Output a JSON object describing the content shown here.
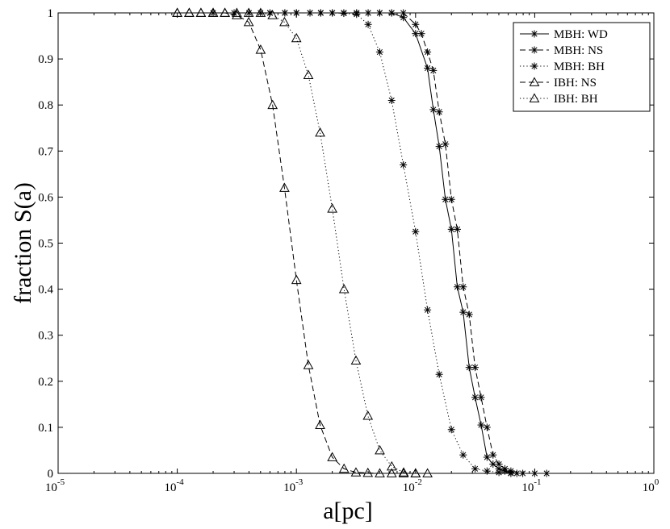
{
  "chart_data": {
    "type": "line",
    "xlabel": "a[pc]",
    "ylabel": "fraction S(a)",
    "xscale": "log",
    "xlim": [
      1e-05,
      1
    ],
    "ylim": [
      0,
      1
    ],
    "xticks": [
      {
        "value": 1e-05,
        "base": "10",
        "exp": "-5"
      },
      {
        "value": 0.0001,
        "base": "10",
        "exp": "-4"
      },
      {
        "value": 0.001,
        "base": "10",
        "exp": "-3"
      },
      {
        "value": 0.01,
        "base": "10",
        "exp": "-2"
      },
      {
        "value": 0.1,
        "base": "10",
        "exp": "-1"
      },
      {
        "value": 1,
        "base": "10",
        "exp": "0"
      }
    ],
    "yticks": [
      "0",
      "0.1",
      "0.2",
      "0.3",
      "0.4",
      "0.5",
      "0.6",
      "0.7",
      "0.8",
      "0.9",
      "1"
    ],
    "grid": false,
    "legend_position": "top-right",
    "series": [
      {
        "name": "MBH: WD",
        "line_style": "solid",
        "marker": "asterisk",
        "x": [
          0.0006,
          0.0008,
          0.001,
          0.0013,
          0.0016,
          0.002,
          0.0025,
          0.0032,
          0.004,
          0.005,
          0.0063,
          0.0079,
          0.01,
          0.0126,
          0.0141,
          0.0158,
          0.0178,
          0.02,
          0.0224,
          0.0251,
          0.0282,
          0.0316,
          0.0355,
          0.0398,
          0.0447,
          0.0501,
          0.0562,
          0.0631
        ],
        "y": [
          1,
          1,
          1,
          1,
          1,
          1,
          1,
          1,
          1,
          1,
          1,
          0.99,
          0.955,
          0.88,
          0.79,
          0.71,
          0.595,
          0.53,
          0.405,
          0.35,
          0.23,
          0.165,
          0.105,
          0.035,
          0.02,
          0.01,
          0.005,
          0
        ]
      },
      {
        "name": "MBH: NS",
        "line_style": "dashed",
        "marker": "asterisk",
        "x": [
          0.0006,
          0.0008,
          0.001,
          0.0013,
          0.0016,
          0.002,
          0.0025,
          0.0032,
          0.004,
          0.005,
          0.0063,
          0.0079,
          0.01,
          0.0112,
          0.0126,
          0.0141,
          0.0158,
          0.0178,
          0.02,
          0.0224,
          0.0251,
          0.0282,
          0.0316,
          0.0355,
          0.0398,
          0.0447,
          0.0501,
          0.0562,
          0.0631,
          0.0708
        ],
        "y": [
          1,
          1,
          1,
          1,
          1,
          1,
          1,
          1,
          1,
          1,
          1,
          1,
          0.975,
          0.955,
          0.915,
          0.875,
          0.785,
          0.715,
          0.595,
          0.53,
          0.405,
          0.345,
          0.23,
          0.165,
          0.1,
          0.04,
          0.02,
          0.01,
          0.005,
          0
        ]
      },
      {
        "name": "MBH: BH",
        "line_style": "dotted",
        "marker": "asterisk",
        "x": [
          0.0002,
          0.0003,
          0.0004,
          0.0005,
          0.0006,
          0.0008,
          0.001,
          0.0013,
          0.0016,
          0.002,
          0.0025,
          0.0032,
          0.004,
          0.005,
          0.0063,
          0.0079,
          0.01,
          0.0126,
          0.0158,
          0.02,
          0.0251,
          0.0316,
          0.0398,
          0.0501,
          0.0631,
          0.0794,
          0.1,
          0.1259
        ],
        "y": [
          1,
          1,
          1,
          1,
          1,
          1,
          1,
          1,
          1,
          1,
          0.999,
          0.997,
          0.975,
          0.915,
          0.81,
          0.67,
          0.525,
          0.355,
          0.215,
          0.095,
          0.04,
          0.01,
          0.005,
          0.002,
          0.001,
          0,
          0,
          0
        ]
      },
      {
        "name": "IBH: NS",
        "line_style": "dashed",
        "marker": "triangle",
        "x": [
          0.0001,
          0.000126,
          0.000158,
          0.0002,
          0.000251,
          0.000316,
          0.000398,
          0.000501,
          0.000631,
          0.000794,
          0.001,
          0.00126,
          0.00158,
          0.002,
          0.00251,
          0.00316,
          0.00398,
          0.00501,
          0.00631,
          0.00794,
          0.01
        ],
        "y": [
          1,
          1,
          1,
          1,
          1,
          0.995,
          0.98,
          0.92,
          0.8,
          0.62,
          0.42,
          0.235,
          0.105,
          0.035,
          0.01,
          0.002,
          0.001,
          0,
          0,
          0,
          0
        ]
      },
      {
        "name": "IBH: BH",
        "line_style": "dotted",
        "marker": "triangle",
        "x": [
          0.0001,
          0.000126,
          0.000158,
          0.0002,
          0.000251,
          0.000316,
          0.000398,
          0.000501,
          0.000631,
          0.000794,
          0.001,
          0.00126,
          0.00158,
          0.002,
          0.00251,
          0.00316,
          0.00398,
          0.00501,
          0.00631,
          0.00794,
          0.01,
          0.0126
        ],
        "y": [
          1,
          1,
          1,
          1,
          1,
          1,
          1,
          1,
          0.995,
          0.98,
          0.945,
          0.865,
          0.74,
          0.575,
          0.4,
          0.245,
          0.125,
          0.05,
          0.015,
          0.002,
          0,
          0
        ]
      }
    ]
  }
}
